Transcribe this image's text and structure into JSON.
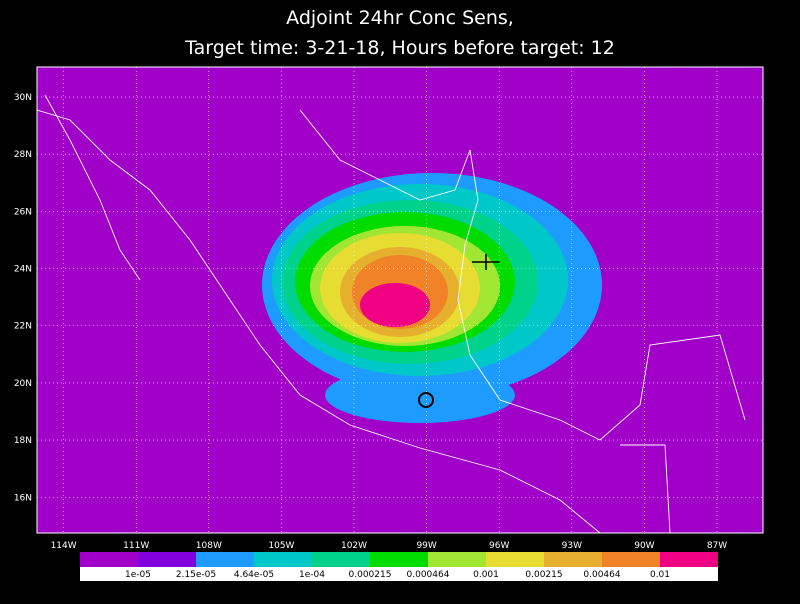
{
  "header": {
    "title_line1": "Adjoint 24hr Conc Sens,",
    "title_line2": "Target time: 3-21-18, Hours before target: 12"
  },
  "map": {
    "background": "#a000c8",
    "xlim": [
      -115.1,
      -85.1
    ],
    "ylim": [
      14.75,
      31.05
    ],
    "xticks": [
      {
        "value": -114,
        "label": "114W"
      },
      {
        "value": -111,
        "label": "111W"
      },
      {
        "value": -108,
        "label": "108W"
      },
      {
        "value": -105,
        "label": "105W"
      },
      {
        "value": -102,
        "label": "102W"
      },
      {
        "value": -99,
        "label": "99W"
      },
      {
        "value": -96,
        "label": "96W"
      },
      {
        "value": -93,
        "label": "93W"
      },
      {
        "value": -90,
        "label": "90W"
      },
      {
        "value": -87,
        "label": "87W"
      }
    ],
    "yticks": [
      {
        "value": 16,
        "label": "16N"
      },
      {
        "value": 18,
        "label": "18N"
      },
      {
        "value": 20,
        "label": "20N"
      },
      {
        "value": 22,
        "label": "22N"
      },
      {
        "value": 24,
        "label": "24N"
      },
      {
        "value": 26,
        "label": "26N"
      },
      {
        "value": 28,
        "label": "28N"
      },
      {
        "value": 30,
        "label": "30N"
      }
    ]
  },
  "colorbar": {
    "colors": [
      "#a000c8",
      "#8200dc",
      "#1e9bff",
      "#00c8c8",
      "#00d28c",
      "#00dc00",
      "#a0e632",
      "#e6dc32",
      "#e6af2d",
      "#f08228",
      "#f00082"
    ],
    "levels": [
      {
        "value": 1e-05,
        "label": "1e-05"
      },
      {
        "value": 2.15e-05,
        "label": "2.15e-05"
      },
      {
        "value": 4.64e-05,
        "label": "4.64e-05"
      },
      {
        "value": 0.0001,
        "label": "1e-04"
      },
      0.000215,
      0.000464,
      0.001,
      0.00215,
      0.00464,
      0.01
    ]
  }
}
